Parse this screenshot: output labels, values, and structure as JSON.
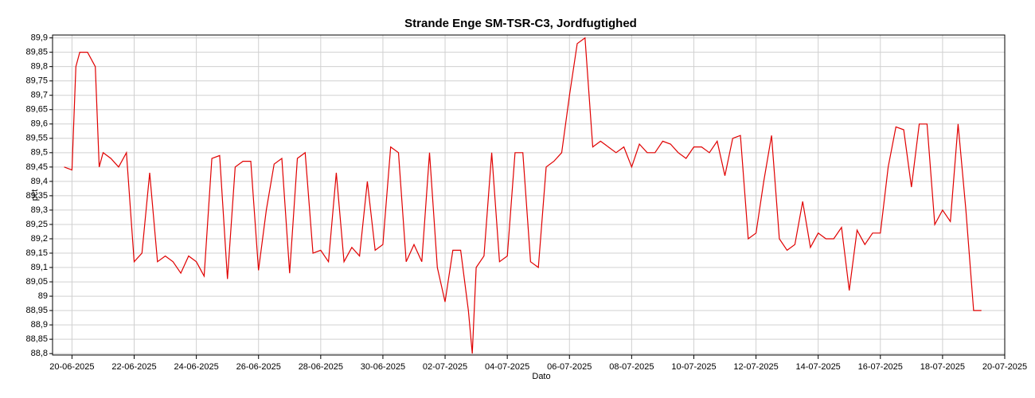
{
  "chart_data": {
    "type": "line",
    "title": "Strande Enge SM-TSR-C3, Jordfugtighed",
    "xlabel": "Dato",
    "ylabel": "pct",
    "grid": true,
    "xlim": [
      "2025-06-19T09:00",
      "2025-07-20T00:00"
    ],
    "ylim": [
      88.795,
      89.91
    ],
    "xticks": [
      {
        "value": "2025-06-20T00:00",
        "label": "20-06-2025"
      },
      {
        "value": "2025-06-22T00:00",
        "label": "22-06-2025"
      },
      {
        "value": "2025-06-24T00:00",
        "label": "24-06-2025"
      },
      {
        "value": "2025-06-26T00:00",
        "label": "26-06-2025"
      },
      {
        "value": "2025-06-28T00:00",
        "label": "28-06-2025"
      },
      {
        "value": "2025-06-30T00:00",
        "label": "30-06-2025"
      },
      {
        "value": "2025-07-02T00:00",
        "label": "02-07-2025"
      },
      {
        "value": "2025-07-04T00:00",
        "label": "04-07-2025"
      },
      {
        "value": "2025-07-06T00:00",
        "label": "06-07-2025"
      },
      {
        "value": "2025-07-08T00:00",
        "label": "08-07-2025"
      },
      {
        "value": "2025-07-10T00:00",
        "label": "10-07-2025"
      },
      {
        "value": "2025-07-12T00:00",
        "label": "12-07-2025"
      },
      {
        "value": "2025-07-14T00:00",
        "label": "14-07-2025"
      },
      {
        "value": "2025-07-16T00:00",
        "label": "16-07-2025"
      },
      {
        "value": "2025-07-18T00:00",
        "label": "18-07-2025"
      },
      {
        "value": "2025-07-20T00:00",
        "label": "20-07-2025"
      }
    ],
    "yticks": [
      {
        "value": 88.8,
        "label": "88,8"
      },
      {
        "value": 88.85,
        "label": "88,85"
      },
      {
        "value": 88.9,
        "label": "88,9"
      },
      {
        "value": 88.95,
        "label": "88,95"
      },
      89,
      {
        "value": 89.05,
        "label": "89,05"
      },
      {
        "value": 89.1,
        "label": "89,1"
      },
      {
        "value": 89.15,
        "label": "89,15"
      },
      {
        "value": 89.2,
        "label": "89,2"
      },
      {
        "value": 89.25,
        "label": "89,25"
      },
      {
        "value": 89.3,
        "label": "89,3"
      },
      {
        "value": 89.35,
        "label": "89,35"
      },
      {
        "value": 89.4,
        "label": "89,4"
      },
      {
        "value": 89.45,
        "label": "89,45"
      },
      {
        "value": 89.5,
        "label": "89,5"
      },
      {
        "value": 89.55,
        "label": "89,55"
      },
      {
        "value": 89.6,
        "label": "89,6"
      },
      {
        "value": 89.65,
        "label": "89,65"
      },
      {
        "value": 89.7,
        "label": "89,7"
      },
      {
        "value": 89.75,
        "label": "89,75"
      },
      {
        "value": 89.8,
        "label": "89,8"
      },
      {
        "value": 89.85,
        "label": "89,85"
      },
      {
        "value": 89.9,
        "label": "89,9"
      }
    ],
    "x": [
      "2025-06-19T18:00",
      "2025-06-20T00:00",
      "2025-06-20T03:00",
      "2025-06-20T06:00",
      "2025-06-20T12:00",
      "2025-06-20T18:00",
      "2025-06-20T21:00",
      "2025-06-21T00:00",
      "2025-06-21T06:00",
      "2025-06-21T12:00",
      "2025-06-21T18:00",
      "2025-06-22T00:00",
      "2025-06-22T06:00",
      "2025-06-22T12:00",
      "2025-06-22T18:00",
      "2025-06-23T00:00",
      "2025-06-23T06:00",
      "2025-06-23T12:00",
      "2025-06-23T18:00",
      "2025-06-24T00:00",
      "2025-06-24T06:00",
      "2025-06-24T12:00",
      "2025-06-24T18:00",
      "2025-06-25T00:00",
      "2025-06-25T06:00",
      "2025-06-25T12:00",
      "2025-06-25T18:00",
      "2025-06-26T00:00",
      "2025-06-26T06:00",
      "2025-06-26T12:00",
      "2025-06-26T18:00",
      "2025-06-27T00:00",
      "2025-06-27T06:00",
      "2025-06-27T12:00",
      "2025-06-27T18:00",
      "2025-06-28T00:00",
      "2025-06-28T06:00",
      "2025-06-28T12:00",
      "2025-06-28T18:00",
      "2025-06-29T00:00",
      "2025-06-29T06:00",
      "2025-06-29T12:00",
      "2025-06-29T18:00",
      "2025-06-30T00:00",
      "2025-06-30T06:00",
      "2025-06-30T12:00",
      "2025-06-30T18:00",
      "2025-07-01T00:00",
      "2025-07-01T06:00",
      "2025-07-01T12:00",
      "2025-07-01T18:00",
      "2025-07-02T00:00",
      "2025-07-02T06:00",
      "2025-07-02T12:00",
      "2025-07-02T18:00",
      "2025-07-02T21:00",
      "2025-07-03T00:00",
      "2025-07-03T06:00",
      "2025-07-03T12:00",
      "2025-07-03T18:00",
      "2025-07-04T00:00",
      "2025-07-04T06:00",
      "2025-07-04T12:00",
      "2025-07-04T18:00",
      "2025-07-05T00:00",
      "2025-07-05T06:00",
      "2025-07-05T12:00",
      "2025-07-05T18:00",
      "2025-07-06T00:00",
      "2025-07-06T06:00",
      "2025-07-06T12:00",
      "2025-07-06T18:00",
      "2025-07-07T00:00",
      "2025-07-07T06:00",
      "2025-07-07T12:00",
      "2025-07-07T18:00",
      "2025-07-08T00:00",
      "2025-07-08T06:00",
      "2025-07-08T12:00",
      "2025-07-08T18:00",
      "2025-07-09T00:00",
      "2025-07-09T06:00",
      "2025-07-09T12:00",
      "2025-07-09T18:00",
      "2025-07-10T00:00",
      "2025-07-10T06:00",
      "2025-07-10T12:00",
      "2025-07-10T18:00",
      "2025-07-11T00:00",
      "2025-07-11T06:00",
      "2025-07-11T12:00",
      "2025-07-11T18:00",
      "2025-07-12T00:00",
      "2025-07-12T06:00",
      "2025-07-12T12:00",
      "2025-07-12T18:00",
      "2025-07-13T00:00",
      "2025-07-13T06:00",
      "2025-07-13T12:00",
      "2025-07-13T18:00",
      "2025-07-14T00:00",
      "2025-07-14T06:00",
      "2025-07-14T12:00",
      "2025-07-14T18:00",
      "2025-07-15T00:00",
      "2025-07-15T06:00",
      "2025-07-15T12:00",
      "2025-07-15T18:00",
      "2025-07-16T00:00",
      "2025-07-16T06:00",
      "2025-07-16T12:00",
      "2025-07-16T18:00",
      "2025-07-17T00:00",
      "2025-07-17T06:00",
      "2025-07-17T12:00",
      "2025-07-17T18:00",
      "2025-07-18T00:00",
      "2025-07-18T06:00",
      "2025-07-18T12:00",
      "2025-07-18T18:00",
      "2025-07-19T00:00",
      "2025-07-19T06:00"
    ],
    "series": [
      {
        "name": "pct",
        "color": "#e00000",
        "values": [
          89.45,
          89.44,
          89.8,
          89.85,
          89.85,
          89.8,
          89.45,
          89.5,
          89.48,
          89.45,
          89.5,
          89.12,
          89.15,
          89.43,
          89.12,
          89.14,
          89.12,
          89.08,
          89.14,
          89.12,
          89.07,
          89.48,
          89.49,
          89.06,
          89.45,
          89.47,
          89.47,
          89.09,
          89.3,
          89.46,
          89.48,
          89.08,
          89.48,
          89.5,
          89.15,
          89.16,
          89.12,
          89.43,
          89.12,
          89.17,
          89.14,
          89.4,
          89.16,
          89.18,
          89.52,
          89.5,
          89.12,
          89.18,
          89.12,
          89.5,
          89.1,
          88.98,
          89.16,
          89.16,
          88.95,
          88.8,
          89.1,
          89.14,
          89.5,
          89.12,
          89.14,
          89.5,
          89.5,
          89.12,
          89.1,
          89.45,
          89.47,
          89.5,
          89.7,
          89.88,
          89.9,
          89.52,
          89.54,
          89.52,
          89.5,
          89.52,
          89.45,
          89.53,
          89.5,
          89.5,
          89.54,
          89.53,
          89.5,
          89.48,
          89.52,
          89.52,
          89.5,
          89.54,
          89.42,
          89.55,
          89.56,
          89.2,
          89.22,
          89.4,
          89.56,
          89.2,
          89.16,
          89.18,
          89.33,
          89.17,
          89.22,
          89.2,
          89.2,
          89.24,
          89.02,
          89.23,
          89.18,
          89.22,
          89.22,
          89.45,
          89.59,
          89.58,
          89.38,
          89.6,
          89.6,
          89.25,
          89.3,
          89.26,
          89.6,
          89.3,
          88.95,
          88.95
        ]
      }
    ]
  }
}
